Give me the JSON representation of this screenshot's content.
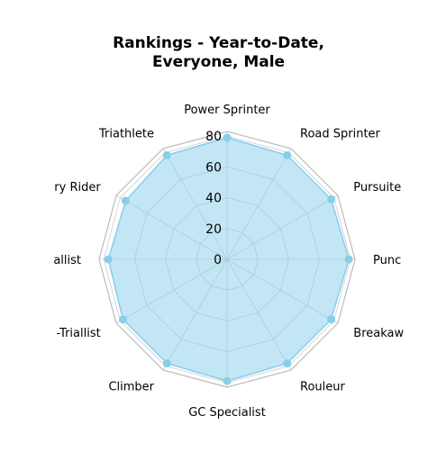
{
  "chart_data": {
    "type": "radar",
    "title": "Rankings - Year-to-Date,\nEveryone, Male",
    "categories": [
      "Power Sprinter",
      "Road Sprinter",
      "Pursuiter",
      "Puncheur",
      "Breakaway",
      "Rouleur",
      "GC Specialist",
      "Climber",
      "Time-Triallist",
      "Triallist",
      "Tiny Rider",
      "Triathlete"
    ],
    "visible_category_labels": [
      "Power Sprinter",
      "Road Sprinter",
      "Pursuite",
      "Punc",
      "Breakaw",
      "Rouleur",
      "GC Specialist",
      "Climber",
      "-Triallist",
      "allist",
      "ry Rider",
      "Triathlete"
    ],
    "series": [
      {
        "values": [
          79,
          78,
          78,
          79,
          78,
          78,
          79,
          78,
          78,
          77,
          76,
          78
        ]
      }
    ],
    "rlim": [
      0,
      83
    ],
    "radial_ticks": [
      "0",
      "20",
      "40",
      "60",
      "80"
    ],
    "radial_tick_values": [
      0,
      20,
      40,
      60,
      80
    ],
    "grid": true,
    "colors": {
      "fill": "#87CEEB",
      "line": "#87CEEB",
      "marker": "#87CEEB",
      "grid": "#cccccc",
      "outer": "#bbbbbb"
    }
  }
}
